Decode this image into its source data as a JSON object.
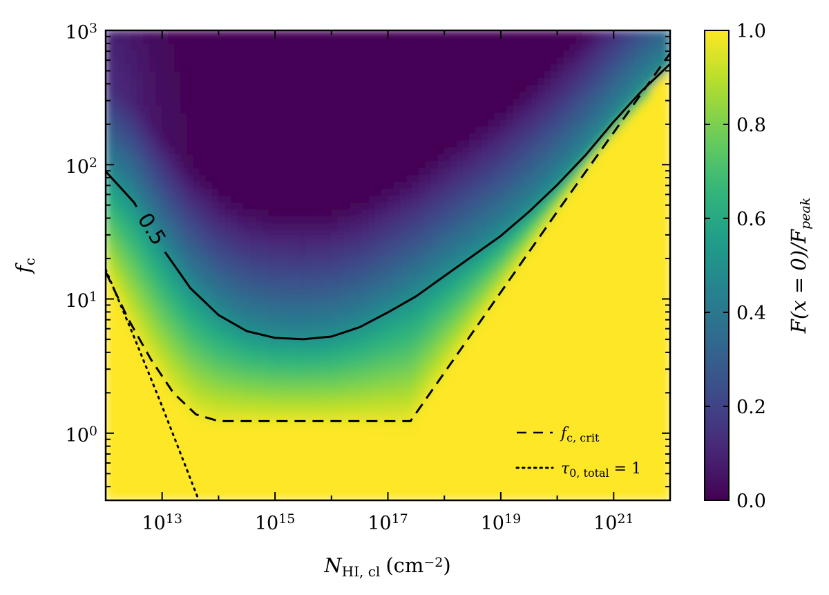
{
  "chart_data": {
    "type": "heatmap",
    "title": "",
    "xlabel": {
      "symbol": "N",
      "subscript": "HI, cl",
      "unit_prefix": "(cm",
      "unit_exponent": "−2",
      "unit_suffix": ")"
    },
    "ylabel": {
      "symbol": "f",
      "subscript": "c"
    },
    "x_scale": "log",
    "y_scale": "log",
    "xlim_log10": [
      12,
      22
    ],
    "ylim_log10": [
      -0.5,
      3
    ],
    "x_ticks": [
      {
        "base": "10",
        "exp": "13"
      },
      {
        "base": "10",
        "exp": "15"
      },
      {
        "base": "10",
        "exp": "17"
      },
      {
        "base": "10",
        "exp": "19"
      },
      {
        "base": "10",
        "exp": "21"
      }
    ],
    "x_tick_values_log10": [
      13,
      15,
      17,
      19,
      21
    ],
    "y_ticks": [
      {
        "base": "10",
        "exp": "0"
      },
      {
        "base": "10",
        "exp": "1"
      },
      {
        "base": "10",
        "exp": "2"
      },
      {
        "base": "10",
        "exp": "3"
      }
    ],
    "y_tick_values_log10": [
      0,
      1,
      2,
      3
    ],
    "colorbar": {
      "label": "F(x = 0)/F",
      "label_subscript": "peak",
      "range": [
        0,
        1
      ],
      "ticks": [
        "0.0",
        "0.2",
        "0.4",
        "0.6",
        "0.8",
        "1.0"
      ],
      "tick_values": [
        0,
        0.2,
        0.4,
        0.6,
        0.8,
        1.0
      ],
      "colormap": "viridis"
    },
    "contour": {
      "level": "0.5",
      "points_log10": [
        [
          12,
          1.95
        ],
        [
          12.5,
          1.72
        ],
        [
          13,
          1.38
        ],
        [
          13.5,
          1.08
        ],
        [
          14,
          0.88
        ],
        [
          14.5,
          0.76
        ],
        [
          15,
          0.71
        ],
        [
          15.5,
          0.7
        ],
        [
          16,
          0.72
        ],
        [
          16.5,
          0.79
        ],
        [
          17,
          0.9
        ],
        [
          17.5,
          1.02
        ],
        [
          18,
          1.17
        ],
        [
          18.5,
          1.32
        ],
        [
          19,
          1.47
        ],
        [
          19.5,
          1.65
        ],
        [
          20,
          1.85
        ],
        [
          20.5,
          2.07
        ],
        [
          21,
          2.32
        ],
        [
          21.5,
          2.55
        ],
        [
          22,
          2.75
        ]
      ]
    },
    "series": [
      {
        "name": "f_c,crit",
        "legend_symbol": "f",
        "legend_subscript": "c, crit",
        "style": "dashed",
        "points_log10": [
          [
            12,
            1.2
          ],
          [
            12.4,
            0.85
          ],
          [
            12.8,
            0.55
          ],
          [
            13.2,
            0.3
          ],
          [
            13.6,
            0.14
          ],
          [
            14.0,
            0.09
          ],
          [
            15,
            0.09
          ],
          [
            16,
            0.09
          ],
          [
            17.4,
            0.09
          ],
          [
            18,
            0.45
          ],
          [
            19,
            1.05
          ],
          [
            20,
            1.65
          ],
          [
            21,
            2.24
          ],
          [
            22,
            2.83
          ]
        ]
      },
      {
        "name": "tau_0,total = 1",
        "legend_symbol": "τ",
        "legend_subscript": "0, total",
        "legend_suffix": " = 1",
        "style": "dotted",
        "points_log10": [
          [
            12,
            1.22
          ],
          [
            12.5,
            0.72
          ],
          [
            13,
            0.2
          ],
          [
            13.65,
            -0.5
          ]
        ]
      }
    ]
  }
}
